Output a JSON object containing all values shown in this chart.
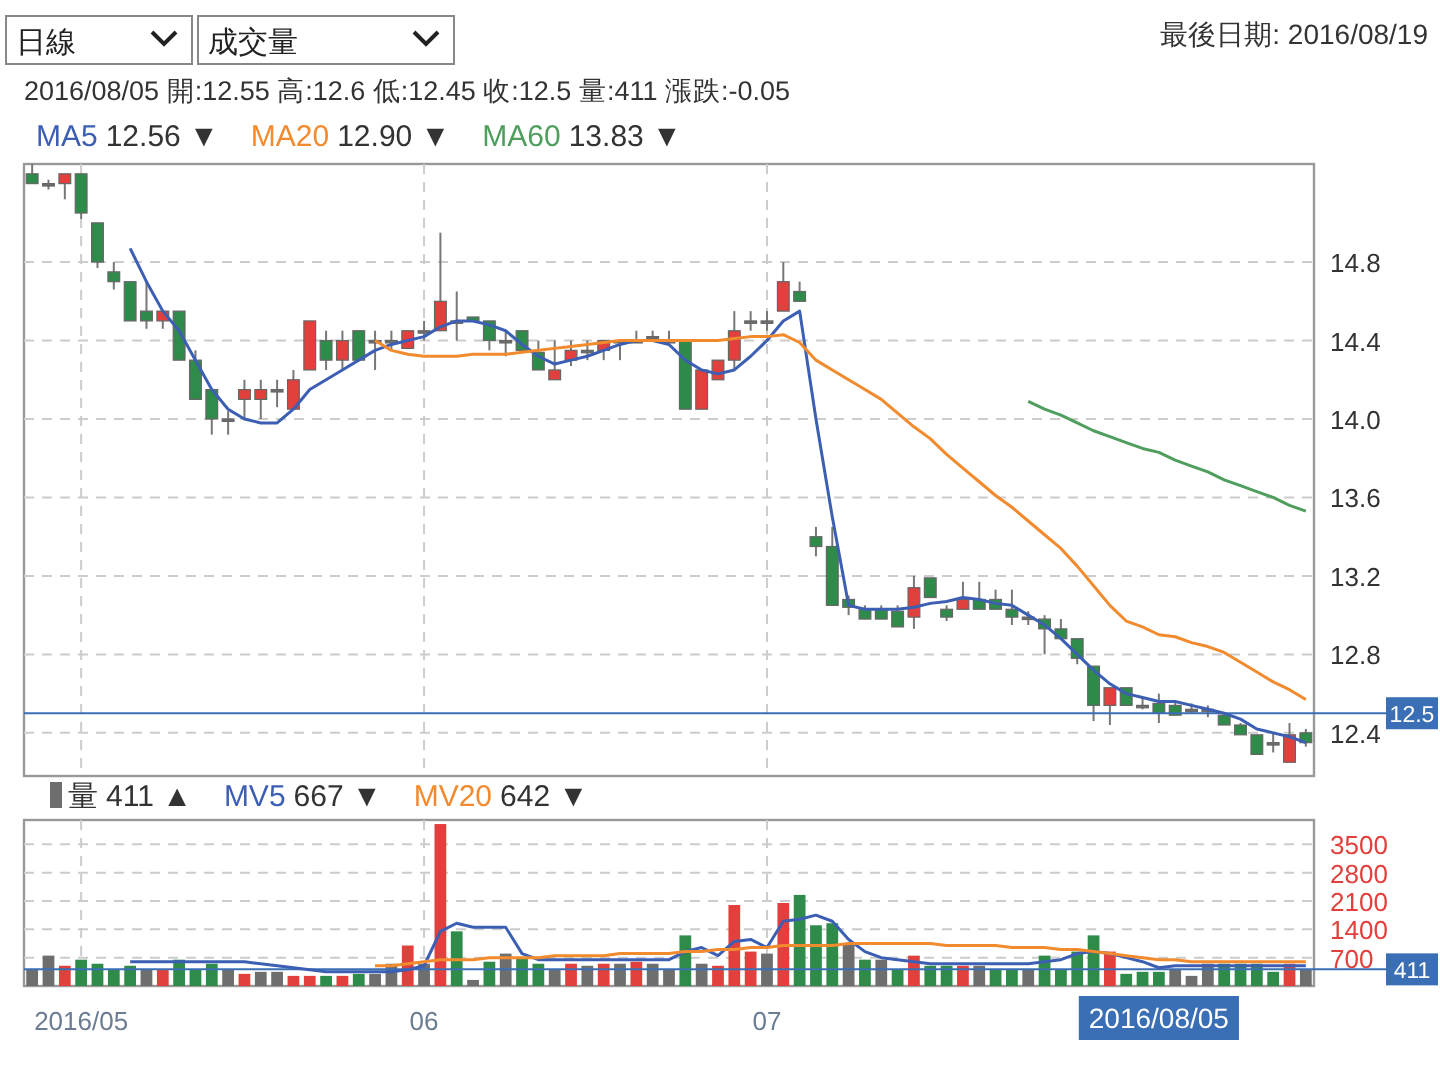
{
  "chart_data": [
    {
      "type": "candlestick",
      "title": "最後日期: 2016/08/19",
      "subtitle": "2016/08/05 開:12.55 高:12.6 低:12.45 收:12.5 量:411 漲跌:-0.05",
      "categories": [
        null,
        null,
        null,
        "2016/05",
        null,
        null,
        null,
        null,
        null,
        null,
        null,
        null,
        null,
        null,
        null,
        null,
        null,
        null,
        null,
        null,
        null,
        null,
        null,
        null,
        "06",
        null,
        null,
        null,
        null,
        null,
        null,
        null,
        null,
        null,
        null,
        null,
        null,
        null,
        null,
        null,
        null,
        null,
        null,
        null,
        null,
        "07",
        null,
        null,
        null,
        null,
        null,
        null,
        null,
        null,
        null,
        null,
        null,
        null,
        null,
        null,
        null,
        null,
        null,
        null,
        null,
        null,
        null,
        null,
        null,
        null,
        null,
        null,
        null,
        null,
        null,
        null,
        null,
        null,
        null
      ],
      "ohlc": [
        [
          15.25,
          15.3,
          15.2,
          15.2
        ],
        [
          15.2,
          15.22,
          15.17,
          15.2
        ],
        [
          15.2,
          15.25,
          15.12,
          15.25
        ],
        [
          15.25,
          15.25,
          15.02,
          15.05
        ],
        [
          15.0,
          15.0,
          14.77,
          14.8
        ],
        [
          14.75,
          14.8,
          14.66,
          14.7
        ],
        [
          14.7,
          14.7,
          14.5,
          14.5
        ],
        [
          14.55,
          14.7,
          14.46,
          14.5
        ],
        [
          14.5,
          14.55,
          14.46,
          14.55
        ],
        [
          14.55,
          14.55,
          14.3,
          14.3
        ],
        [
          14.3,
          14.35,
          14.1,
          14.1
        ],
        [
          14.15,
          14.15,
          13.92,
          14.0
        ],
        [
          14.0,
          14.04,
          13.92,
          14.0
        ],
        [
          14.1,
          14.2,
          14.0,
          14.15
        ],
        [
          14.1,
          14.2,
          14.0,
          14.15
        ],
        [
          14.15,
          14.2,
          14.06,
          14.15
        ],
        [
          14.05,
          14.25,
          14.05,
          14.2
        ],
        [
          14.25,
          14.5,
          14.25,
          14.5
        ],
        [
          14.4,
          14.45,
          14.25,
          14.3
        ],
        [
          14.3,
          14.45,
          14.25,
          14.4
        ],
        [
          14.45,
          14.45,
          14.3,
          14.3
        ],
        [
          14.4,
          14.45,
          14.25,
          14.4
        ],
        [
          14.4,
          14.45,
          14.35,
          14.4
        ],
        [
          14.36,
          14.45,
          14.36,
          14.45
        ],
        [
          14.45,
          14.5,
          14.4,
          14.45
        ],
        [
          14.45,
          14.95,
          14.45,
          14.6
        ],
        [
          14.5,
          14.65,
          14.4,
          14.5
        ],
        [
          14.52,
          14.52,
          14.5,
          14.5
        ],
        [
          14.5,
          14.5,
          14.35,
          14.4
        ],
        [
          14.4,
          14.45,
          14.32,
          14.4
        ],
        [
          14.45,
          14.45,
          14.35,
          14.35
        ],
        [
          14.34,
          14.4,
          14.25,
          14.25
        ],
        [
          14.2,
          14.4,
          14.2,
          14.25
        ],
        [
          14.3,
          14.4,
          14.27,
          14.35
        ],
        [
          14.35,
          14.4,
          14.3,
          14.35
        ],
        [
          14.35,
          14.4,
          14.3,
          14.4
        ],
        [
          14.4,
          14.4,
          14.3,
          14.4
        ],
        [
          14.4,
          14.45,
          14.4,
          14.4
        ],
        [
          14.42,
          14.45,
          14.4,
          14.42
        ],
        [
          14.4,
          14.45,
          14.4,
          14.4
        ],
        [
          14.4,
          14.4,
          14.05,
          14.05
        ],
        [
          14.05,
          14.25,
          14.05,
          14.25
        ],
        [
          14.2,
          14.3,
          14.2,
          14.3
        ],
        [
          14.3,
          14.55,
          14.25,
          14.45
        ],
        [
          14.5,
          14.55,
          14.45,
          14.5
        ],
        [
          14.5,
          14.55,
          14.45,
          14.5
        ],
        [
          14.55,
          14.8,
          14.55,
          14.7
        ],
        [
          14.65,
          14.7,
          14.6,
          14.6
        ],
        [
          13.4,
          13.45,
          13.3,
          13.35
        ],
        [
          13.35,
          13.45,
          13.05,
          13.05
        ],
        [
          13.08,
          13.1,
          13.0,
          13.04
        ],
        [
          13.03,
          13.05,
          12.98,
          12.98
        ],
        [
          13.03,
          13.05,
          12.98,
          12.98
        ],
        [
          13.02,
          13.05,
          12.94,
          12.94
        ],
        [
          12.99,
          13.2,
          12.93,
          13.14
        ],
        [
          13.19,
          13.19,
          13.09,
          13.09
        ],
        [
          13.03,
          13.05,
          12.97,
          12.99
        ],
        [
          13.03,
          13.17,
          13.03,
          13.08
        ],
        [
          13.08,
          13.17,
          13.03,
          13.03
        ],
        [
          13.08,
          13.13,
          13.03,
          13.03
        ],
        [
          13.03,
          13.13,
          12.95,
          12.99
        ],
        [
          12.99,
          13.02,
          12.95,
          12.99
        ],
        [
          12.98,
          13.0,
          12.8,
          12.93
        ],
        [
          12.93,
          12.98,
          12.88,
          12.88
        ],
        [
          12.88,
          12.88,
          12.75,
          12.78
        ],
        [
          12.74,
          12.74,
          12.46,
          12.54
        ],
        [
          12.54,
          12.63,
          12.44,
          12.63
        ],
        [
          12.63,
          12.63,
          12.54,
          12.54
        ],
        [
          12.54,
          12.58,
          12.52,
          12.54
        ],
        [
          12.55,
          12.6,
          12.45,
          12.5
        ],
        [
          12.54,
          12.56,
          12.49,
          12.49
        ],
        [
          12.52,
          12.55,
          12.5,
          12.52
        ],
        [
          12.52,
          12.54,
          12.48,
          12.52
        ],
        [
          12.49,
          12.5,
          12.44,
          12.44
        ],
        [
          12.44,
          12.45,
          12.39,
          12.39
        ],
        [
          12.39,
          12.39,
          12.29,
          12.29
        ],
        [
          12.35,
          12.4,
          12.3,
          12.35
        ],
        [
          12.25,
          12.45,
          12.25,
          12.39
        ],
        [
          12.4,
          12.42,
          12.33,
          12.35
        ]
      ],
      "colors": [
        "#2e8b4a",
        "#6e6e6e",
        "#e2403d",
        "#2e8b4a",
        "#2e8b4a",
        "#2e8b4a",
        "#2e8b4a",
        "#2e8b4a",
        "#e2403d",
        "#2e8b4a",
        "#2e8b4a",
        "#2e8b4a",
        "#6e6e6e",
        "#e2403d",
        "#e2403d",
        "#6e6e6e",
        "#e2403d",
        "#e2403d",
        "#2e8b4a",
        "#e2403d",
        "#2e8b4a",
        "#6e6e6e",
        "#6e6e6e",
        "#e2403d",
        "#6e6e6e",
        "#e2403d",
        "#6e6e6e",
        "#2e8b4a",
        "#2e8b4a",
        "#6e6e6e",
        "#2e8b4a",
        "#2e8b4a",
        "#e2403d",
        "#e2403d",
        "#6e6e6e",
        "#e2403d",
        "#6e6e6e",
        "#6e6e6e",
        "#6e6e6e",
        "#6e6e6e",
        "#2e8b4a",
        "#e2403d",
        "#e2403d",
        "#e2403d",
        "#6e6e6e",
        "#6e6e6e",
        "#e2403d",
        "#2e8b4a",
        "#2e8b4a",
        "#2e8b4a",
        "#2e8b4a",
        "#2e8b4a",
        "#2e8b4a",
        "#2e8b4a",
        "#e2403d",
        "#2e8b4a",
        "#2e8b4a",
        "#e2403d",
        "#2e8b4a",
        "#2e8b4a",
        "#2e8b4a",
        "#6e6e6e",
        "#2e8b4a",
        "#2e8b4a",
        "#2e8b4a",
        "#2e8b4a",
        "#e2403d",
        "#2e8b4a",
        "#6e6e6e",
        "#2e8b4a",
        "#2e8b4a",
        "#6e6e6e",
        "#6e6e6e",
        "#2e8b4a",
        "#2e8b4a",
        "#2e8b4a",
        "#6e6e6e",
        "#e2403d",
        "#2e8b4a"
      ],
      "series": [
        {
          "name": "MA5",
          "type": "line",
          "color": "#3c5fb4",
          "values": [
            null,
            null,
            null,
            null,
            null,
            null,
            14.87,
            14.7,
            14.55,
            14.45,
            14.3,
            14.15,
            14.05,
            14.0,
            13.98,
            13.98,
            14.05,
            14.15,
            14.2,
            14.25,
            14.3,
            14.35,
            14.38,
            14.4,
            14.42,
            14.47,
            14.5,
            14.5,
            14.48,
            14.45,
            14.38,
            14.32,
            14.28,
            14.3,
            14.32,
            14.35,
            14.38,
            14.4,
            14.4,
            14.38,
            14.3,
            14.25,
            14.23,
            14.25,
            14.32,
            14.4,
            14.5,
            14.55,
            14.0,
            13.5,
            13.05,
            13.03,
            13.03,
            13.03,
            13.04,
            13.06,
            13.07,
            13.09,
            13.08,
            13.06,
            13.05,
            13.0,
            12.95,
            12.88,
            12.8,
            12.72,
            12.65,
            12.6,
            12.58,
            12.56,
            12.56,
            12.54,
            12.52,
            12.5,
            12.47,
            12.42,
            12.4,
            12.38,
            12.35
          ]
        },
        {
          "name": "MA20",
          "type": "line",
          "color": "#f28a2e",
          "values": [
            null,
            null,
            null,
            null,
            null,
            null,
            null,
            null,
            null,
            null,
            null,
            null,
            null,
            null,
            null,
            null,
            null,
            null,
            null,
            null,
            null,
            14.4,
            14.35,
            14.33,
            14.32,
            14.32,
            14.32,
            14.33,
            14.33,
            14.33,
            14.34,
            14.35,
            14.36,
            14.37,
            14.38,
            14.39,
            14.4,
            14.4,
            14.4,
            14.4,
            14.4,
            14.4,
            14.4,
            14.41,
            14.42,
            14.42,
            14.43,
            14.39,
            14.3,
            14.25,
            14.2,
            14.15,
            14.1,
            14.03,
            13.96,
            13.9,
            13.82,
            13.75,
            13.68,
            13.61,
            13.55,
            13.48,
            13.41,
            13.34,
            13.25,
            13.15,
            13.05,
            12.97,
            12.94,
            12.9,
            12.89,
            12.86,
            12.84,
            12.81,
            12.76,
            12.71,
            12.66,
            12.62,
            12.57
          ]
        },
        {
          "name": "MA60",
          "type": "line",
          "color": "#4f9e5e",
          "values": [
            null,
            null,
            null,
            null,
            null,
            null,
            null,
            null,
            null,
            null,
            null,
            null,
            null,
            null,
            null,
            null,
            null,
            null,
            null,
            null,
            null,
            null,
            null,
            null,
            null,
            null,
            null,
            null,
            null,
            null,
            null,
            null,
            null,
            null,
            null,
            null,
            null,
            null,
            null,
            null,
            null,
            null,
            null,
            null,
            null,
            null,
            null,
            null,
            null,
            null,
            null,
            null,
            null,
            null,
            null,
            null,
            null,
            null,
            null,
            null,
            null,
            14.09,
            14.05,
            14.02,
            13.98,
            13.94,
            13.91,
            13.88,
            13.85,
            13.83,
            13.79,
            13.76,
            13.73,
            13.69,
            13.66,
            13.63,
            13.6,
            13.56,
            13.53
          ]
        }
      ],
      "ylim": [
        12.18,
        15.3
      ],
      "yticks": [
        {
          "value": 12.4,
          "label": "12.4"
        },
        12.8,
        13.2,
        13.6,
        {
          "value": 14,
          "label": "14.0"
        },
        14.4,
        14.8
      ],
      "grid": true,
      "tick_labels": "y",
      "legend": "top",
      "ref_lines": [
        {
          "axis": "y",
          "value": 12.5,
          "label": "12.5",
          "color": "#3a6fb5"
        }
      ],
      "annotations": [
        "日線",
        "成交量",
        "12.56 ▼",
        "12.90 ▼",
        "13.83 ▼"
      ]
    },
    {
      "type": "bar",
      "categories": [
        null,
        null,
        null,
        "2016/05",
        null,
        null,
        null,
        null,
        null,
        null,
        null,
        null,
        null,
        null,
        null,
        null,
        null,
        null,
        null,
        null,
        null,
        null,
        null,
        null,
        "06",
        null,
        null,
        null,
        null,
        null,
        null,
        null,
        null,
        null,
        null,
        null,
        null,
        null,
        null,
        null,
        null,
        null,
        null,
        null,
        null,
        "07",
        null,
        null,
        null,
        null,
        null,
        null,
        null,
        null,
        null,
        null,
        null,
        null,
        null,
        null,
        null,
        null,
        null,
        null,
        null,
        null,
        null,
        null,
        null,
        null,
        null,
        null,
        null,
        null,
        null,
        null,
        null,
        null,
        null
      ],
      "series": [
        {
          "name": "量",
          "type": "bar",
          "values": [
            400,
            750,
            500,
            650,
            550,
            400,
            500,
            400,
            400,
            650,
            400,
            550,
            400,
            300,
            350,
            350,
            250,
            250,
            250,
            250,
            300,
            300,
            550,
            1000,
            550,
            4000,
            1350,
            150,
            600,
            800,
            700,
            550,
            400,
            550,
            500,
            550,
            550,
            600,
            550,
            400,
            1250,
            550,
            500,
            2000,
            850,
            800,
            2050,
            2250,
            1500,
            1550,
            1050,
            650,
            650,
            400,
            750,
            500,
            500,
            500,
            500,
            400,
            400,
            400,
            750,
            400,
            850,
            1250,
            850,
            300,
            350,
            350,
            400,
            250,
            550,
            550,
            550,
            550,
            350,
            550,
            411
          ],
          "colors": [
            "#6e6e6e",
            "#6e6e6e",
            "#e2403d",
            "#2e8b4a",
            "#2e8b4a",
            "#2e8b4a",
            "#2e8b4a",
            "#6e6e6e",
            "#e2403d",
            "#2e8b4a",
            "#2e8b4a",
            "#2e8b4a",
            "#6e6e6e",
            "#e2403d",
            "#6e6e6e",
            "#6e6e6e",
            "#e2403d",
            "#e2403d",
            "#2e8b4a",
            "#e2403d",
            "#2e8b4a",
            "#6e6e6e",
            "#6e6e6e",
            "#e2403d",
            "#6e6e6e",
            "#e2403d",
            "#2e8b4a",
            "#6e6e6e",
            "#2e8b4a",
            "#6e6e6e",
            "#2e8b4a",
            "#2e8b4a",
            "#6e6e6e",
            "#e2403d",
            "#6e6e6e",
            "#e2403d",
            "#6e6e6e",
            "#e2403d",
            "#6e6e6e",
            "#6e6e6e",
            "#2e8b4a",
            "#6e6e6e",
            "#e2403d",
            "#e2403d",
            "#e2403d",
            "#6e6e6e",
            "#e2403d",
            "#2e8b4a",
            "#2e8b4a",
            "#2e8b4a",
            "#6e6e6e",
            "#2e8b4a",
            "#6e6e6e",
            "#2e8b4a",
            "#e2403d",
            "#2e8b4a",
            "#2e8b4a",
            "#e2403d",
            "#6e6e6e",
            "#2e8b4a",
            "#2e8b4a",
            "#6e6e6e",
            "#2e8b4a",
            "#2e8b4a",
            "#2e8b4a",
            "#2e8b4a",
            "#e2403d",
            "#2e8b4a",
            "#2e8b4a",
            "#2e8b4a",
            "#6e6e6e",
            "#6e6e6e",
            "#6e6e6e",
            "#2e8b4a",
            "#2e8b4a",
            "#2e8b4a",
            "#2e8b4a",
            "#e2403d",
            "#6e6e6e"
          ]
        },
        {
          "name": "MV5",
          "type": "line",
          "color": "#3c5fb4",
          "values": [
            null,
            null,
            null,
            null,
            null,
            null,
            600,
            600,
            600,
            600,
            600,
            600,
            600,
            600,
            550,
            500,
            450,
            400,
            350,
            350,
            350,
            350,
            350,
            400,
            500,
            1350,
            1550,
            1450,
            1450,
            1450,
            800,
            650,
            650,
            650,
            650,
            650,
            650,
            650,
            650,
            650,
            850,
            950,
            750,
            1100,
            1150,
            950,
            1600,
            1650,
            1750,
            1600,
            1150,
            850,
            700,
            650,
            600,
            550,
            550,
            550,
            550,
            550,
            550,
            550,
            600,
            650,
            800,
            850,
            800,
            700,
            600,
            450,
            500,
            500,
            500,
            500,
            500,
            500,
            500,
            500,
            500
          ]
        },
        {
          "name": "MV20",
          "type": "line",
          "color": "#f28a2e",
          "values": [
            null,
            null,
            null,
            null,
            null,
            null,
            null,
            null,
            null,
            null,
            null,
            null,
            null,
            null,
            null,
            null,
            null,
            null,
            null,
            null,
            null,
            500,
            500,
            550,
            600,
            650,
            650,
            650,
            700,
            700,
            700,
            700,
            750,
            750,
            750,
            750,
            800,
            800,
            800,
            800,
            850,
            850,
            900,
            900,
            950,
            950,
            1000,
            1000,
            1000,
            1000,
            1050,
            1050,
            1050,
            1050,
            1050,
            1050,
            1000,
            1000,
            1000,
            1000,
            950,
            950,
            950,
            900,
            900,
            850,
            800,
            750,
            700,
            650,
            650,
            600,
            600,
            600,
            600,
            600,
            600,
            600,
            600
          ]
        }
      ],
      "ylim": [
        0,
        4100
      ],
      "yticks": [
        700,
        1400,
        2100,
        2800,
        3500
      ],
      "grid": true,
      "legend": "top",
      "ref_lines": [
        {
          "axis": "y",
          "value": 411,
          "label": "411",
          "color": "#3a6fb5"
        }
      ],
      "annotations": [
        "411 ▲",
        "667 ▼",
        "642 ▼",
        "2016/08/05"
      ]
    }
  ]
}
